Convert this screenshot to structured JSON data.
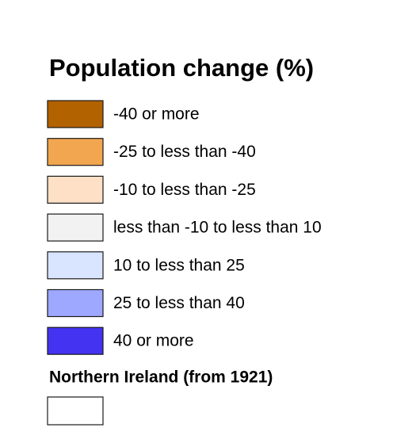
{
  "legend": {
    "title": "Population change (%)",
    "items": [
      {
        "label": "-40 or more",
        "color": "#b36200"
      },
      {
        "label": "-25 to less than -40",
        "color": "#f2a64f"
      },
      {
        "label": "-10 to less than -25",
        "color": "#fde0c6"
      },
      {
        "label": "less than -10 to less than 10",
        "color": "#f2f2f2"
      },
      {
        "label": "10 to less than 25",
        "color": "#d9e5ff"
      },
      {
        "label": "25 to less than 40",
        "color": "#9ea8ff"
      },
      {
        "label": "40 or more",
        "color": "#4433f0"
      }
    ],
    "extra": {
      "label": "Northern Ireland (from 1921)",
      "color": "#ffffff"
    }
  }
}
